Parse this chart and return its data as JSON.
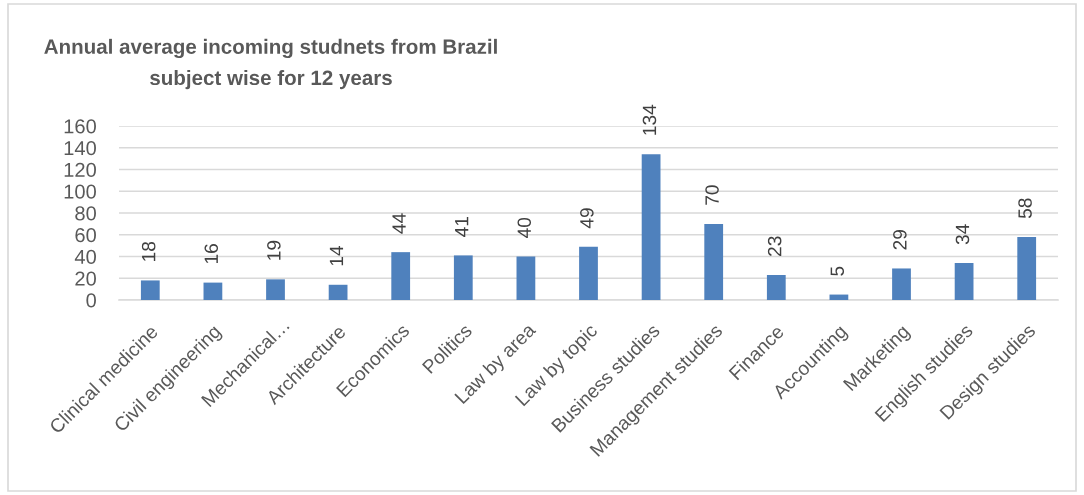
{
  "chart_data": {
    "type": "bar",
    "title": "Annual average incoming studnets from Brazil\nsubject wise for 12 years",
    "categories": [
      "Clinical medicine",
      "Civil engineering",
      "Mechanical…",
      "Architecture",
      "Economics",
      "Politics",
      "Law by area",
      "Law by topic",
      "Business studies",
      "Management studies",
      "Finance",
      "Accounting",
      "Marketing",
      "English studies",
      "Design studies"
    ],
    "values": [
      18,
      16,
      19,
      14,
      44,
      41,
      40,
      49,
      134,
      70,
      23,
      5,
      29,
      34,
      58
    ],
    "color": "#4f81bd",
    "ylim": [
      0,
      160
    ],
    "yticks": [
      0,
      20,
      40,
      60,
      80,
      100,
      120,
      140,
      160
    ],
    "grid": "y",
    "data_labels": true,
    "legend": false
  }
}
